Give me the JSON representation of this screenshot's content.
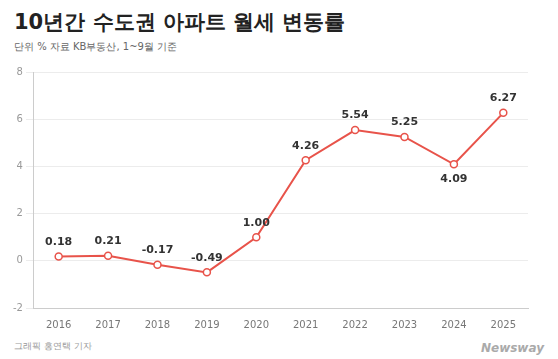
{
  "chart_data": {
    "type": "line",
    "title": "10년간 수도권 아파트 월세 변동률",
    "subtitle": "단위 %  자료 KB부동산, 1~9월 기준",
    "categories": [
      "2016",
      "2017",
      "2018",
      "2019",
      "2020",
      "2021",
      "2022",
      "2023",
      "2024",
      "2025"
    ],
    "values": [
      0.18,
      0.21,
      -0.17,
      -0.49,
      1.0,
      4.26,
      5.54,
      5.25,
      4.09,
      6.27
    ],
    "value_labels": [
      "0.18",
      "0.21",
      "-0.17",
      "-0.49",
      "1.00",
      "4.26",
      "5.54",
      "5.25",
      "4.09",
      "6.27"
    ],
    "color": "#e8534a",
    "marker": "circle",
    "ylim": [
      -2,
      8
    ],
    "yticks": [
      -2,
      0,
      2,
      4,
      6,
      8
    ],
    "grid": true,
    "data_labels": true,
    "annotations": [
      "그래픽 홍연택 기자",
      "Newsway"
    ]
  }
}
